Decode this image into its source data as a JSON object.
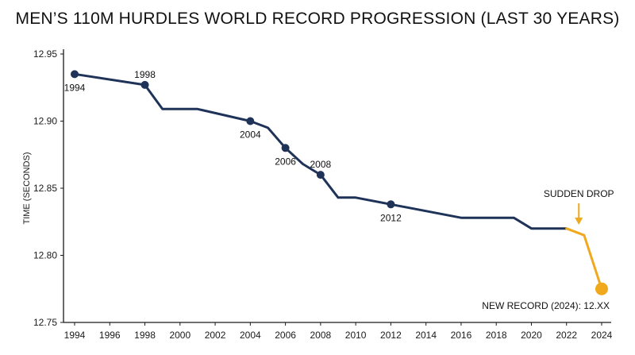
{
  "chart_data": {
    "type": "line",
    "title": "MEN’S 110M HURDLES WORLD RECORD PROGRESSION (LAST 30 YEARS)",
    "xlabel": "",
    "ylabel": "TIME (SECONDS)",
    "xlim": [
      1994,
      2024
    ],
    "ylim": [
      12.75,
      12.95
    ],
    "x_ticks": [
      "1994",
      "1996",
      "1998",
      "2000",
      "2002",
      "2004",
      "2006",
      "2008",
      "2010",
      "2012",
      "2014",
      "2016",
      "2018",
      "2020",
      "2022",
      "2024"
    ],
    "y_ticks": [
      "12.95",
      "12.90",
      "12.85",
      "12.80",
      "12.75"
    ],
    "grid": false,
    "colors": {
      "main": "#1f3359",
      "highlight": "#f0a81c"
    },
    "series": [
      {
        "name": "",
        "color": "#1f3359",
        "points": [
          [
            1994,
            12.935
          ],
          [
            1998,
            12.927
          ],
          [
            1999,
            12.909
          ],
          [
            2001,
            12.909
          ],
          [
            2004,
            12.9
          ],
          [
            2005,
            12.895
          ],
          [
            2006,
            12.88
          ],
          [
            2007,
            12.868
          ],
          [
            2008,
            12.86
          ],
          [
            2009,
            12.843
          ],
          [
            2010,
            12.843
          ],
          [
            2012,
            12.838
          ],
          [
            2016,
            12.828
          ],
          [
            2019,
            12.828
          ],
          [
            2020,
            12.82
          ],
          [
            2022,
            12.82
          ]
        ],
        "markers": [
          1994,
          1998,
          2004,
          2006,
          2008,
          2012
        ]
      },
      {
        "name": "",
        "color": "#f0a81c",
        "points": [
          [
            2022,
            12.82
          ],
          [
            2023,
            12.815
          ],
          [
            2024,
            12.775
          ]
        ],
        "markers": [
          2024
        ]
      }
    ],
    "point_labels": [
      {
        "text": "1994",
        "x": 1994,
        "y": 12.935,
        "pos": "below"
      },
      {
        "text": "1998",
        "x": 1998,
        "y": 12.927,
        "pos": "above"
      },
      {
        "text": "2004",
        "x": 2004,
        "y": 12.9,
        "pos": "below"
      },
      {
        "text": "2006",
        "x": 2006,
        "y": 12.88,
        "pos": "below"
      },
      {
        "text": "2008",
        "x": 2008,
        "y": 12.86,
        "pos": "above"
      },
      {
        "text": "2012",
        "x": 2012,
        "y": 12.838,
        "pos": "below"
      }
    ],
    "annotations": {
      "drop_label": "SUDDEN DROP",
      "drop_year": 2022.7,
      "drop_value": 12.816,
      "record_label": "NEW RECORD (2024): 12.XX"
    }
  }
}
